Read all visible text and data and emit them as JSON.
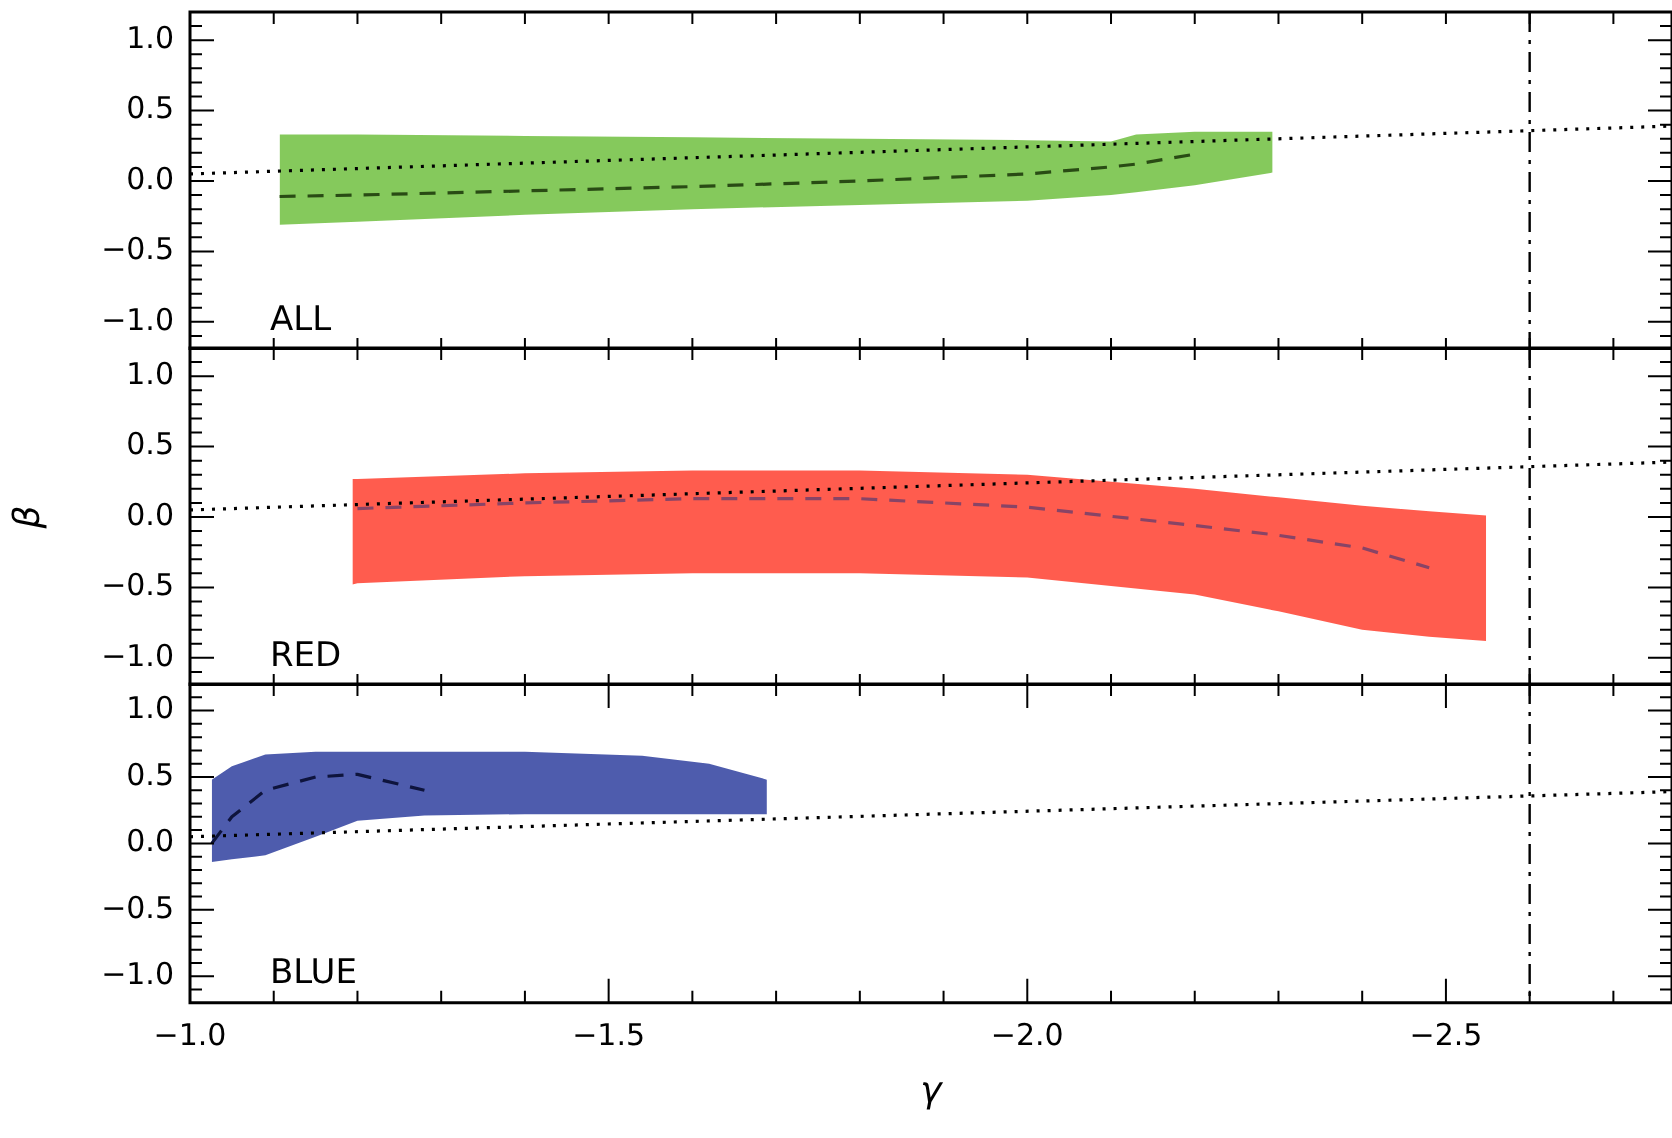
{
  "chart_data": [
    {
      "type": "line",
      "annotations": [
        "ALL"
      ],
      "xlim": [
        -1.0,
        -2.77
      ],
      "ylim": [
        -1.2,
        1.2
      ],
      "tick_labels": "y",
      "xticks": [
        {
          "value": -1.0,
          "label": null
        },
        {
          "value": -1.1,
          "label": null
        },
        {
          "value": -1.2,
          "label": null
        },
        {
          "value": -1.3,
          "label": null
        },
        {
          "value": -1.4,
          "label": null
        },
        {
          "value": -1.5,
          "label": null
        },
        {
          "value": -1.6,
          "label": null
        },
        {
          "value": -1.7,
          "label": null
        },
        {
          "value": -1.8,
          "label": null
        },
        {
          "value": -1.9,
          "label": null
        },
        {
          "value": -2.0,
          "label": null
        },
        {
          "value": -2.1,
          "label": null
        },
        {
          "value": -2.2,
          "label": null
        },
        {
          "value": -2.3,
          "label": null
        },
        {
          "value": -2.4,
          "label": null
        },
        {
          "value": -2.5,
          "label": null
        },
        {
          "value": -2.6,
          "label": null
        },
        {
          "value": -2.7,
          "label": null
        }
      ],
      "yticks": [
        {
          "value": -1.0,
          "label": "−1.0"
        },
        {
          "value": -0.5,
          "label": "−0.5"
        },
        {
          "value": 0.0,
          "label": "0.0"
        },
        {
          "value": 0.5,
          "label": "0.5"
        },
        {
          "value": 1.0,
          "label": "1.0"
        },
        {
          "value": -1.1,
          "label": null
        },
        {
          "value": -0.9,
          "label": null
        },
        {
          "value": -0.8,
          "label": null
        },
        {
          "value": -0.7,
          "label": null
        },
        {
          "value": -0.6,
          "label": null
        },
        {
          "value": -0.4,
          "label": null
        },
        {
          "value": -0.3,
          "label": null
        },
        {
          "value": -0.2,
          "label": null
        },
        {
          "value": -0.1,
          "label": null
        },
        {
          "value": 0.1,
          "label": null
        },
        {
          "value": 0.2,
          "label": null
        },
        {
          "value": 0.3,
          "label": null
        },
        {
          "value": 0.4,
          "label": null
        },
        {
          "value": 0.6,
          "label": null
        },
        {
          "value": 0.7,
          "label": null
        },
        {
          "value": 0.8,
          "label": null
        },
        {
          "value": 0.9,
          "label": null
        },
        {
          "value": 1.1,
          "label": null
        }
      ],
      "ref_lines": [
        {
          "axis": "x",
          "value": -2.6,
          "line_style": "dashdot",
          "color": "#000000"
        }
      ],
      "series": [
        {
          "type": "area",
          "color": "#66bb33",
          "x": [
            -1.107,
            -1.2,
            -1.4,
            -1.6,
            -1.8,
            -2.0,
            -2.1,
            -2.13,
            -2.2,
            -2.293
          ],
          "values": [
            null,
            null,
            null,
            null,
            null,
            null,
            null,
            null,
            null,
            null
          ],
          "upper": [
            0.33,
            0.33,
            0.32,
            0.31,
            0.3,
            0.29,
            0.28,
            0.33,
            0.35,
            0.35
          ],
          "lower": [
            -0.31,
            -0.29,
            -0.24,
            -0.2,
            -0.17,
            -0.14,
            -0.1,
            -0.08,
            -0.03,
            0.06
          ]
        },
        {
          "type": "line",
          "color": "#294b14",
          "line_style": "dashed",
          "x": [
            -1.107,
            -1.2,
            -1.4,
            -1.6,
            -1.8,
            -2.0,
            -2.1,
            -2.13,
            -2.2
          ],
          "values": [
            -0.11,
            -0.1,
            -0.07,
            -0.04,
            0.0,
            0.05,
            0.1,
            0.12,
            0.19
          ]
        },
        {
          "type": "line",
          "color": "#000000",
          "line_style": "dotted",
          "x": [
            -1.0,
            -2.77
          ],
          "values": [
            0.05,
            0.39
          ]
        }
      ]
    },
    {
      "type": "line",
      "ylabel": "β",
      "annotations": [
        "RED"
      ],
      "xlim": [
        -1.0,
        -2.77
      ],
      "ylim": [
        -1.2,
        1.2
      ],
      "tick_labels": "y",
      "xticks": [
        {
          "value": -1.0,
          "label": null
        },
        {
          "value": -1.1,
          "label": null
        },
        {
          "value": -1.2,
          "label": null
        },
        {
          "value": -1.3,
          "label": null
        },
        {
          "value": -1.4,
          "label": null
        },
        {
          "value": -1.5,
          "label": null
        },
        {
          "value": -1.6,
          "label": null
        },
        {
          "value": -1.7,
          "label": null
        },
        {
          "value": -1.8,
          "label": null
        },
        {
          "value": -1.9,
          "label": null
        },
        {
          "value": -2.0,
          "label": null
        },
        {
          "value": -2.1,
          "label": null
        },
        {
          "value": -2.2,
          "label": null
        },
        {
          "value": -2.3,
          "label": null
        },
        {
          "value": -2.4,
          "label": null
        },
        {
          "value": -2.5,
          "label": null
        },
        {
          "value": -2.6,
          "label": null
        },
        {
          "value": -2.7,
          "label": null
        }
      ],
      "yticks": [
        {
          "value": -1.0,
          "label": "−1.0"
        },
        {
          "value": -0.5,
          "label": "−0.5"
        },
        {
          "value": 0.0,
          "label": "0.0"
        },
        {
          "value": 0.5,
          "label": "0.5"
        },
        {
          "value": 1.0,
          "label": "1.0"
        },
        {
          "value": -1.1,
          "label": null
        },
        {
          "value": -0.9,
          "label": null
        },
        {
          "value": -0.8,
          "label": null
        },
        {
          "value": -0.7,
          "label": null
        },
        {
          "value": -0.6,
          "label": null
        },
        {
          "value": -0.4,
          "label": null
        },
        {
          "value": -0.3,
          "label": null
        },
        {
          "value": -0.2,
          "label": null
        },
        {
          "value": -0.1,
          "label": null
        },
        {
          "value": 0.1,
          "label": null
        },
        {
          "value": 0.2,
          "label": null
        },
        {
          "value": 0.3,
          "label": null
        },
        {
          "value": 0.4,
          "label": null
        },
        {
          "value": 0.6,
          "label": null
        },
        {
          "value": 0.7,
          "label": null
        },
        {
          "value": 0.8,
          "label": null
        },
        {
          "value": 0.9,
          "label": null
        },
        {
          "value": 1.1,
          "label": null
        }
      ],
      "ref_lines": [
        {
          "axis": "x",
          "value": -2.6,
          "line_style": "dashdot",
          "color": "#000000"
        }
      ],
      "series": [
        {
          "type": "area",
          "color": "#ff3322",
          "x": [
            -1.194,
            -1.2,
            -1.4,
            -1.6,
            -1.8,
            -2.0,
            -2.2,
            -2.3,
            -2.4,
            -2.48,
            -2.548
          ],
          "values": [
            null,
            null,
            null,
            null,
            null,
            null,
            null,
            null,
            null,
            null,
            null
          ],
          "upper": [
            0.27,
            0.27,
            0.31,
            0.33,
            0.33,
            0.3,
            0.2,
            0.14,
            0.08,
            0.04,
            0.01
          ],
          "lower": [
            -0.48,
            -0.47,
            -0.42,
            -0.4,
            -0.4,
            -0.43,
            -0.55,
            -0.67,
            -0.8,
            -0.85,
            -0.88
          ]
        },
        {
          "type": "line",
          "color": "#884466",
          "line_style": "dashed",
          "x": [
            -1.2,
            -1.4,
            -1.6,
            -1.8,
            -2.0,
            -2.2,
            -2.3,
            -2.4,
            -2.48
          ],
          "values": [
            0.06,
            0.1,
            0.13,
            0.13,
            0.07,
            -0.06,
            -0.13,
            -0.22,
            -0.36
          ]
        },
        {
          "type": "line",
          "color": "#000000",
          "line_style": "dotted",
          "x": [
            -1.0,
            -2.77
          ],
          "values": [
            0.05,
            0.39
          ]
        }
      ]
    },
    {
      "type": "line",
      "xlabel": "γ",
      "annotations": [
        "BLUE"
      ],
      "xlim": [
        -1.0,
        -2.77
      ],
      "ylim": [
        -1.2,
        1.2
      ],
      "xticks": [
        {
          "value": -1.0,
          "label": "−1.0"
        },
        {
          "value": -1.5,
          "label": "−1.5"
        },
        {
          "value": -2.0,
          "label": "−2.0"
        },
        {
          "value": -2.5,
          "label": "−2.5"
        },
        {
          "value": -1.1,
          "label": null
        },
        {
          "value": -1.2,
          "label": null
        },
        {
          "value": -1.3,
          "label": null
        },
        {
          "value": -1.4,
          "label": null
        },
        {
          "value": -1.6,
          "label": null
        },
        {
          "value": -1.7,
          "label": null
        },
        {
          "value": -1.8,
          "label": null
        },
        {
          "value": -1.9,
          "label": null
        },
        {
          "value": -2.1,
          "label": null
        },
        {
          "value": -2.2,
          "label": null
        },
        {
          "value": -2.3,
          "label": null
        },
        {
          "value": -2.4,
          "label": null
        },
        {
          "value": -2.6,
          "label": null
        },
        {
          "value": -2.7,
          "label": null
        }
      ],
      "yticks": [
        {
          "value": -1.0,
          "label": "−1.0"
        },
        {
          "value": -0.5,
          "label": "−0.5"
        },
        {
          "value": 0.0,
          "label": "0.0"
        },
        {
          "value": 0.5,
          "label": "0.5"
        },
        {
          "value": 1.0,
          "label": "1.0"
        },
        {
          "value": -1.1,
          "label": null
        },
        {
          "value": -0.9,
          "label": null
        },
        {
          "value": -0.8,
          "label": null
        },
        {
          "value": -0.7,
          "label": null
        },
        {
          "value": -0.6,
          "label": null
        },
        {
          "value": -0.4,
          "label": null
        },
        {
          "value": -0.3,
          "label": null
        },
        {
          "value": -0.2,
          "label": null
        },
        {
          "value": -0.1,
          "label": null
        },
        {
          "value": 0.1,
          "label": null
        },
        {
          "value": 0.2,
          "label": null
        },
        {
          "value": 0.3,
          "label": null
        },
        {
          "value": 0.4,
          "label": null
        },
        {
          "value": 0.6,
          "label": null
        },
        {
          "value": 0.7,
          "label": null
        },
        {
          "value": 0.8,
          "label": null
        },
        {
          "value": 0.9,
          "label": null
        },
        {
          "value": 1.1,
          "label": null
        }
      ],
      "ref_lines": [
        {
          "axis": "x",
          "value": -2.6,
          "line_style": "dashdot",
          "color": "#000000"
        }
      ],
      "series": [
        {
          "type": "area",
          "color": "#223399",
          "x": [
            -1.026,
            -1.05,
            -1.09,
            -1.15,
            -1.2,
            -1.28,
            -1.4,
            -1.54,
            -1.62,
            -1.689
          ],
          "values": [
            null,
            null,
            null,
            null,
            null,
            null,
            null,
            null,
            null,
            null
          ],
          "upper": [
            0.48,
            0.58,
            0.67,
            0.69,
            0.69,
            0.69,
            0.69,
            0.66,
            0.6,
            0.48
          ],
          "lower": [
            -0.14,
            -0.12,
            -0.09,
            0.05,
            0.17,
            0.21,
            0.22,
            0.22,
            0.22,
            0.22
          ]
        },
        {
          "type": "line",
          "color": "#0e143d",
          "line_style": "dashed",
          "x": [
            -1.026,
            -1.05,
            -1.09,
            -1.15,
            -1.2,
            -1.28
          ],
          "values": [
            0.0,
            0.2,
            0.4,
            0.5,
            0.52,
            0.4
          ]
        },
        {
          "type": "line",
          "color": "#000000",
          "line_style": "dotted",
          "x": [
            -1.0,
            -2.77
          ],
          "values": [
            0.05,
            0.39
          ]
        }
      ]
    }
  ]
}
